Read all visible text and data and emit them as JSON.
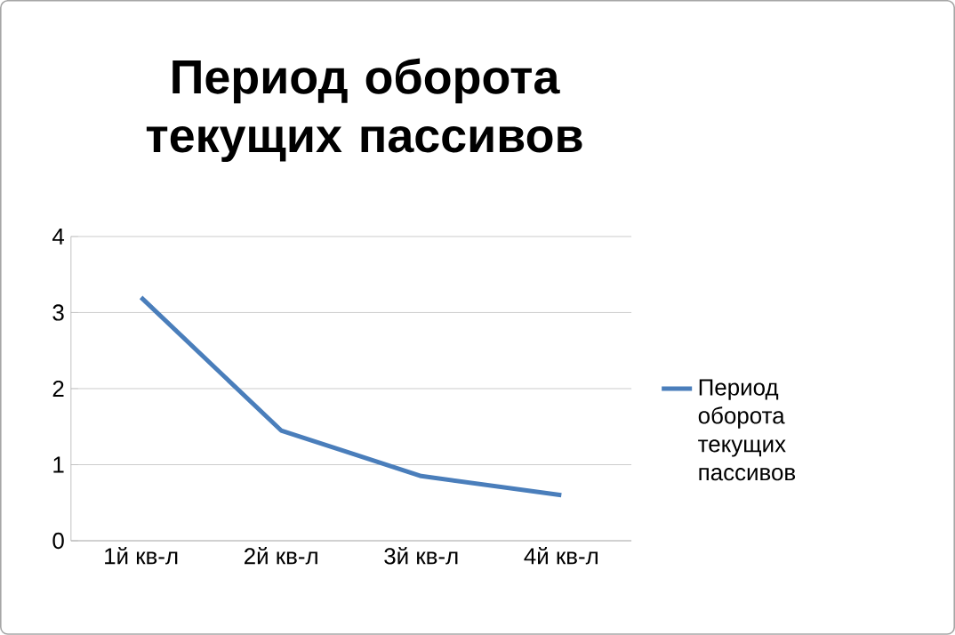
{
  "chart_data": {
    "type": "line",
    "title": "Период оборота текущих пассивов",
    "categories": [
      "1й кв-л",
      "2й кв-л",
      "3й кв-л",
      "4й кв-л"
    ],
    "series": [
      {
        "name": "Период оборота текущих пассивов",
        "color": "#4a7ebb",
        "values": [
          3.2,
          1.45,
          0.85,
          0.6
        ]
      }
    ],
    "ylim": [
      0,
      4
    ],
    "yticks": [
      0,
      1,
      2,
      3,
      4
    ],
    "grid": "y",
    "legend": "right",
    "marker": "none"
  }
}
